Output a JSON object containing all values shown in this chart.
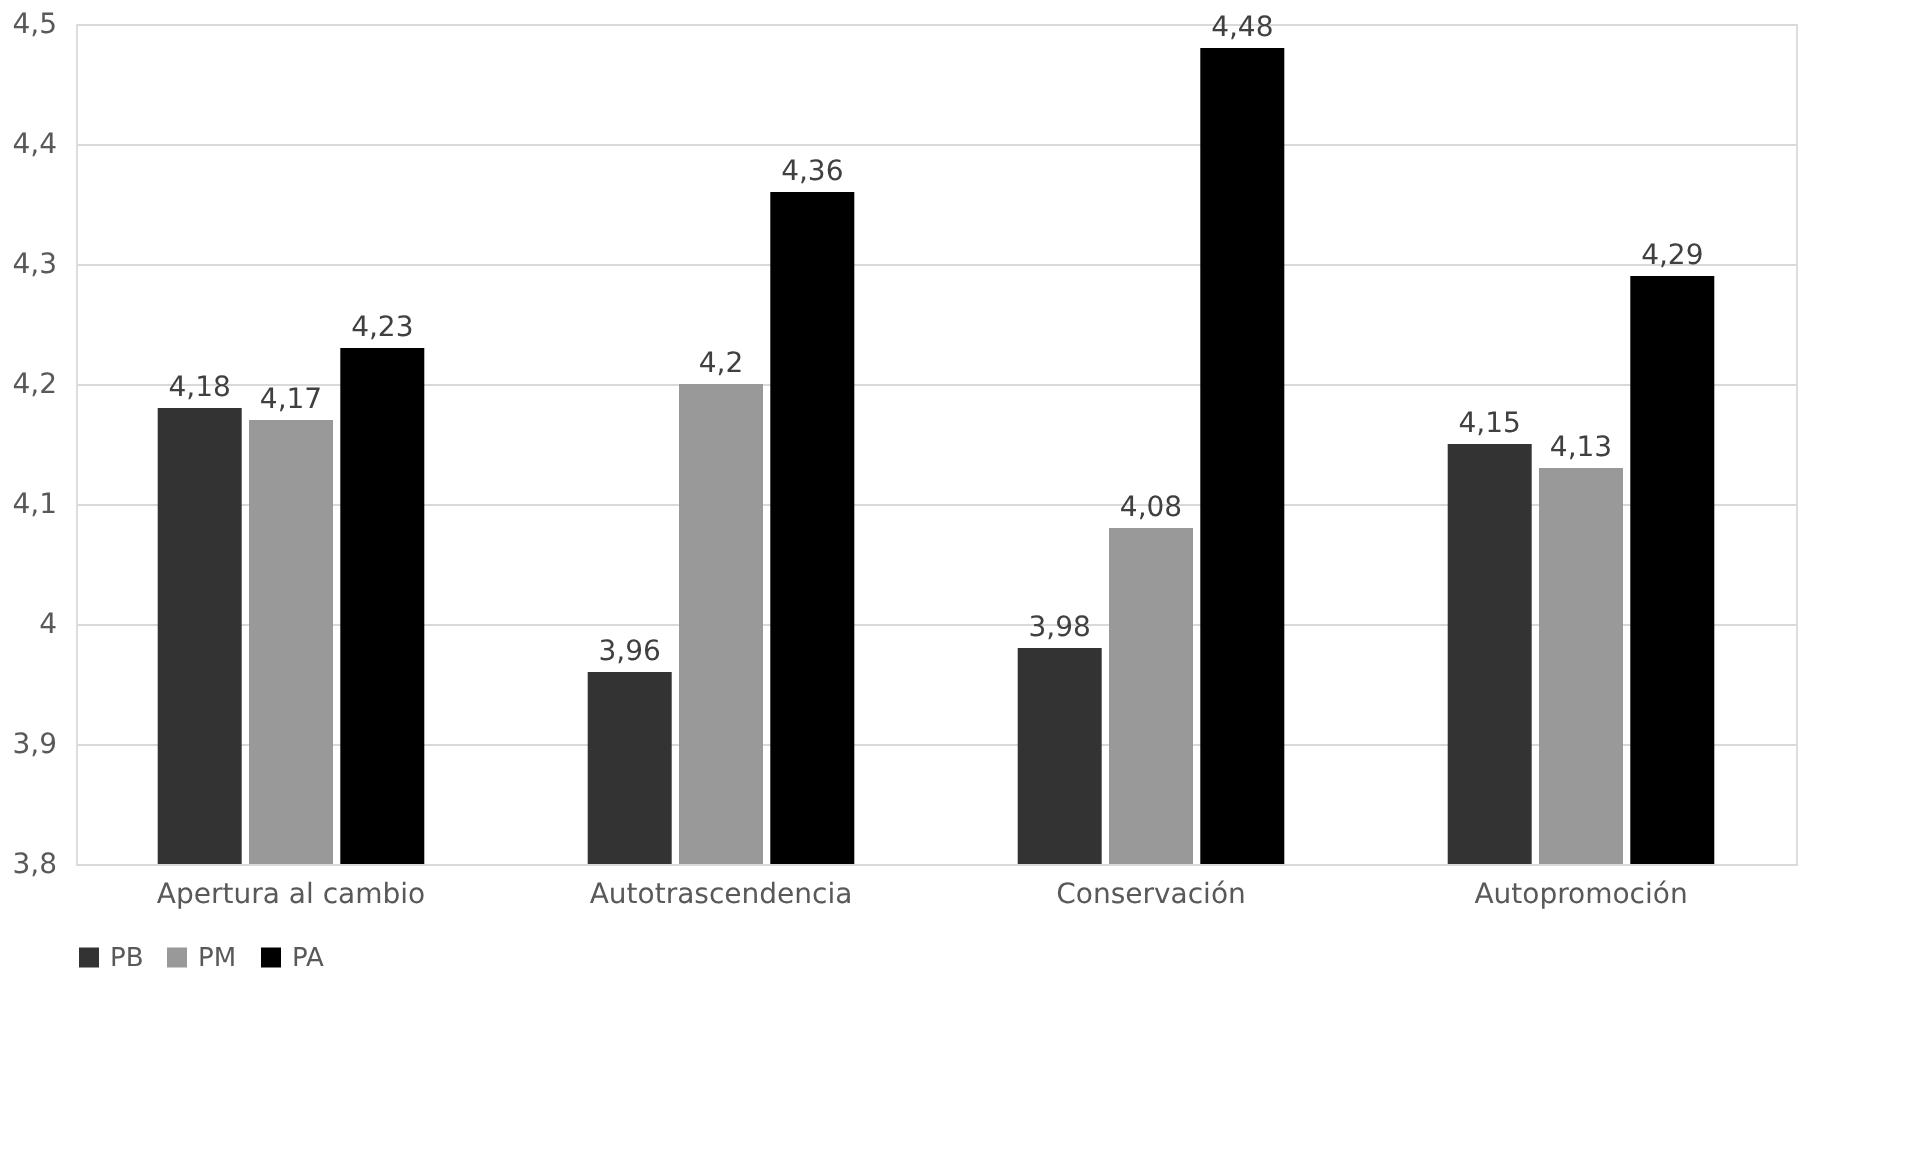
{
  "chart_data": {
    "type": "bar",
    "categories": [
      "Apertura al cambio",
      "Autotrascendencia",
      "Conservación",
      "Autopromoción"
    ],
    "series": [
      {
        "name": "PB",
        "color": "#333333",
        "values": [
          4.18,
          3.96,
          3.98,
          4.15
        ],
        "value_labels": [
          "4,18",
          "3,96",
          "3,98",
          "4,15"
        ]
      },
      {
        "name": "PM",
        "color": "#999999",
        "values": [
          4.17,
          4.2,
          4.08,
          4.13
        ],
        "value_labels": [
          "4,17",
          "4,2",
          "4,08",
          "4,13"
        ]
      },
      {
        "name": "PA",
        "color": "#000000",
        "values": [
          4.23,
          4.36,
          4.48,
          4.29
        ],
        "value_labels": [
          "4,23",
          "4,36",
          "4,48",
          "4,29"
        ]
      }
    ],
    "ylim": [
      3.8,
      4.5
    ],
    "yticks": [
      {
        "value": 3.8,
        "label": "3,8"
      },
      {
        "value": 3.9,
        "label": "3,9"
      },
      {
        "value": 4.0,
        "label": "4"
      },
      {
        "value": 4.1,
        "label": "4,1"
      },
      {
        "value": 4.2,
        "label": "4,2"
      },
      {
        "value": 4.3,
        "label": "4,3"
      },
      {
        "value": 4.4,
        "label": "4,4"
      },
      {
        "value": 4.5,
        "label": "4,5"
      }
    ],
    "grid": "y",
    "legend": "bottom"
  }
}
